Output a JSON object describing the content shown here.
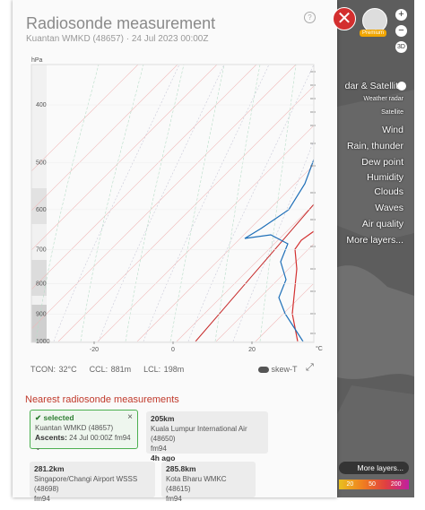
{
  "top": {
    "premium": "Premium"
  },
  "panel": {
    "title": "Radiosonde measurement",
    "subtitle": "Kuantan WMKD (48657) · 24 Jul 2023 00:00Z",
    "help": "?"
  },
  "diagram": {
    "pressure_unit": "hPa",
    "pressure_ticks": [
      400,
      500,
      600,
      700,
      800,
      900,
      1000
    ],
    "temperature_ticks": [
      -20,
      0,
      20
    ],
    "temperature_unit": "°C"
  },
  "stats": [
    "TCON: 32°C",
    "CCL: 881m",
    "LCL: 198m"
  ],
  "toggle": "skew-T",
  "nearest": {
    "heading": "Nearest radiosonde measurements",
    "cards": [
      {
        "status": "selected",
        "close": "×",
        "name": "Kuantan WMKD (48657)",
        "ascents_label": "Ascents:",
        "ascents": "24 Jul 00:00Z fm94"
      },
      {
        "distance": "205km",
        "name": "Kuala Lumpur International Air (48650)",
        "model": "fm94",
        "age": "4h ago"
      },
      {
        "distance": "281.2km",
        "name": "Singapore/Changi Airport WSSS (48698)",
        "model": "fm94"
      },
      {
        "distance": "285.8km",
        "name": "Kota Bharu WMKC (48615)",
        "model": "fm94"
      }
    ]
  },
  "map": {
    "buttons": [
      "+",
      "−",
      "3D"
    ],
    "layers": [
      "dar & Satellite",
      "Weather radar",
      "Satellite",
      "Wind",
      "Rain, thunder",
      "Dew point",
      "Humidity",
      "Clouds",
      "Waves",
      "Air quality",
      "More layers..."
    ],
    "more_layers": "More layers...",
    "scale": [
      "20",
      "50",
      "200"
    ]
  }
}
